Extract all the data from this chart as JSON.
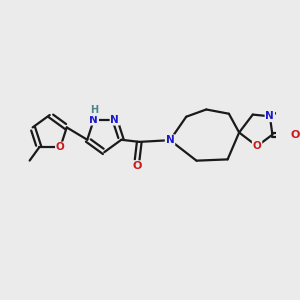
{
  "background_color": "#ebebeb",
  "bond_color": "#1a1a1a",
  "N_color": "#1a1acc",
  "O_color": "#cc1a1a",
  "H_color": "#4a8888",
  "figsize": [
    3.0,
    3.0
  ],
  "dpi": 100,
  "xlim": [
    -3.2,
    3.2
  ],
  "ylim": [
    -1.5,
    1.8
  ]
}
